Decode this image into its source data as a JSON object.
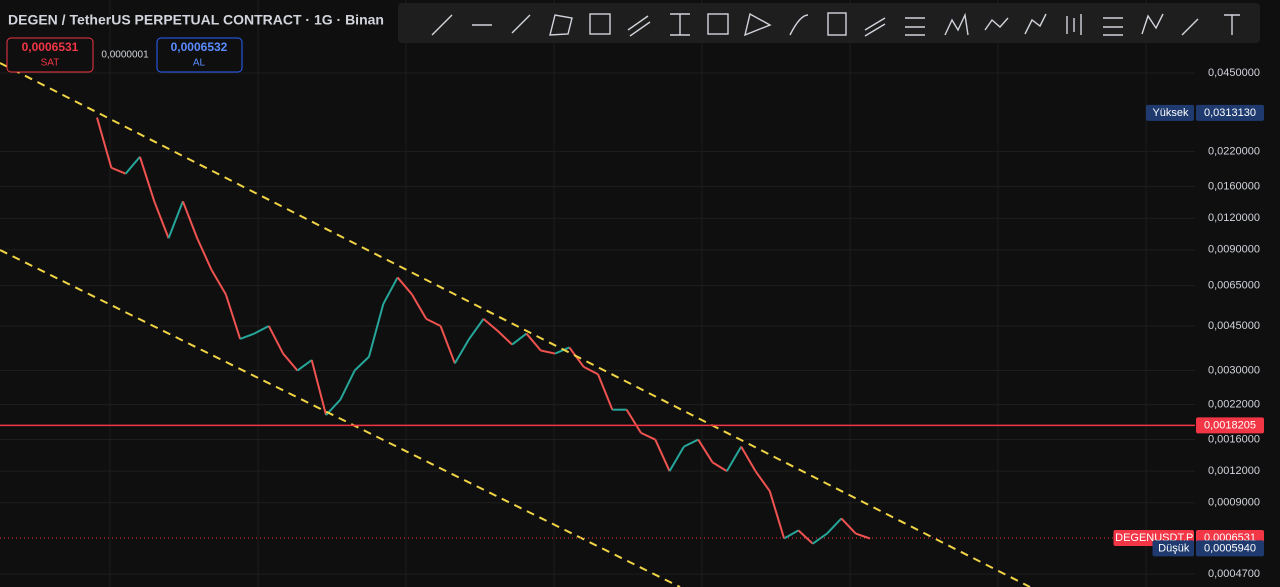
{
  "header": {
    "title": "DEGEN / TetherUS PERPETUAL CONTRACT · 1G · Binan",
    "sell": {
      "price": "0,0006531",
      "label": "SAT"
    },
    "spread": "0,0000001",
    "buy": {
      "price": "0,0006532",
      "label": "AL"
    }
  },
  "chart_data": {
    "type": "line",
    "log_scale": true,
    "ylim": [
      0.000418,
      0.0875
    ],
    "yticks": [
      {
        "value": 0.045,
        "label": "0,0450000"
      },
      {
        "value": 0.022,
        "label": "0,0220000"
      },
      {
        "value": 0.016,
        "label": "0,0160000"
      },
      {
        "value": 0.012,
        "label": "0,0120000"
      },
      {
        "value": 0.009,
        "label": "0,0090000"
      },
      {
        "value": 0.0065,
        "label": "0,0065000"
      },
      {
        "value": 0.0045,
        "label": "0,0045000"
      },
      {
        "value": 0.003,
        "label": "0,0030000"
      },
      {
        "value": 0.0022,
        "label": "0,0022000"
      },
      {
        "value": 0.0016,
        "label": "0,0016000"
      },
      {
        "value": 0.0012,
        "label": "0,0012000"
      },
      {
        "value": 0.0009,
        "label": "0,0009000"
      },
      {
        "value": 0.00047,
        "label": "0,0004700"
      }
    ],
    "up_color": "#26a69a",
    "down_color": "#ef5350",
    "values": [
      0.03,
      0.019,
      0.018,
      0.021,
      0.014,
      0.01,
      0.014,
      0.01,
      0.0075,
      0.006,
      0.004,
      0.0042,
      0.0045,
      0.0035,
      0.003,
      0.0033,
      0.002,
      0.0023,
      0.003,
      0.0034,
      0.0055,
      0.007,
      0.006,
      0.0048,
      0.0045,
      0.0032,
      0.004,
      0.0048,
      0.0043,
      0.0038,
      0.0042,
      0.0036,
      0.0035,
      0.0037,
      0.0031,
      0.0029,
      0.0021,
      0.0021,
      0.0017,
      0.0016,
      0.0012,
      0.0015,
      0.0016,
      0.0013,
      0.0012,
      0.0015,
      0.0012,
      0.001,
      0.00065,
      0.0007,
      0.00062,
      0.00068,
      0.00078,
      0.00068,
      0.00065
    ],
    "price_labels": [
      {
        "name": "Yüksek",
        "value": 0.031313,
        "label": "0,0313130",
        "color": "#1e3a6e"
      },
      {
        "value": 0.0018205,
        "label": "0,0018205",
        "color": "#f23645",
        "line": true
      },
      {
        "name": "DEGENUSDT.P",
        "value": 0.0006531,
        "label": "0,0006531",
        "color": "#f23645",
        "dotted": true
      },
      {
        "name": "Düşük",
        "value": 0.000594,
        "label": "0,0005940",
        "color": "#1e3a6e"
      }
    ]
  }
}
